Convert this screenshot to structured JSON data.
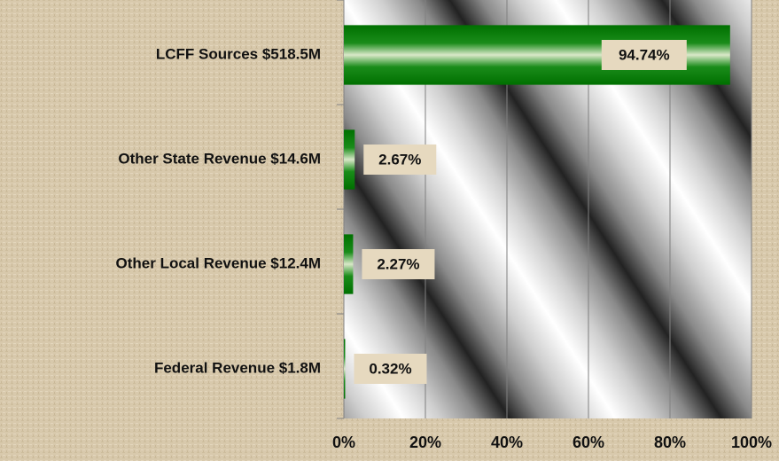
{
  "chart_data": {
    "type": "bar",
    "orientation": "horizontal",
    "categories": [
      "LCFF Sources $518.5M",
      "Other State Revenue $14.6M",
      "Other Local Revenue $12.4M",
      "Federal Revenue $1.8M"
    ],
    "values": [
      94.74,
      2.67,
      2.27,
      0.32
    ],
    "value_labels": [
      "94.74%",
      "2.67%",
      "2.27%",
      "0.32%"
    ],
    "color": "#008000",
    "xlim": [
      0,
      100
    ],
    "xticks": [
      {
        "value": 0,
        "label": "0%"
      },
      {
        "value": 20,
        "label": "20%"
      },
      {
        "value": 40,
        "label": "40%"
      },
      {
        "value": 60,
        "label": "60%"
      },
      {
        "value": 80,
        "label": "80%"
      },
      {
        "value": 100,
        "label": "100%"
      }
    ],
    "grid": true
  }
}
